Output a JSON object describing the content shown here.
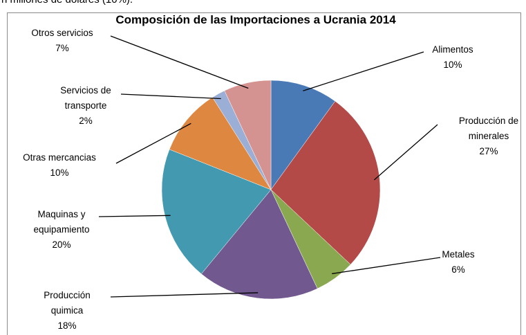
{
  "caption": "n millones de dolares (10%).",
  "chart_data": {
    "type": "pie",
    "title": "Composición de las Importaciones a Ucrania 2014",
    "categories": [
      "Alimentos",
      "Producción de\nminerales",
      "Metales",
      "Producción\nquimica",
      "Maquinas y\nequipamiento",
      "Otras mercancias",
      "Servicios de\ntransporte",
      "Otros servicios"
    ],
    "values": [
      10,
      27,
      6,
      18,
      20,
      10,
      2,
      7
    ],
    "value_labels": [
      "10%",
      "27%",
      "6%",
      "18%",
      "20%",
      "10%",
      "2%",
      "7%"
    ],
    "colors": [
      "#4a7ab5",
      "#b34a47",
      "#8aa84f",
      "#71598f",
      "#4299b0",
      "#dd8740",
      "#9aaed6",
      "#d49391"
    ]
  }
}
